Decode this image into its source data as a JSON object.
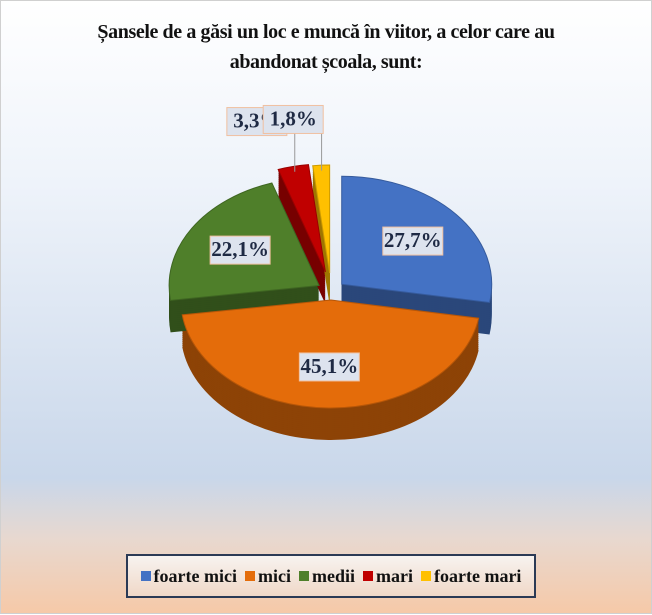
{
  "chart_data": {
    "type": "pie",
    "title": "Șansele de a găsi un loc e muncă în viitor, a celor care au abandonat școala, sunt:",
    "categories": [
      "foarte mici",
      "mici",
      "medii",
      "mari",
      "foarte mari"
    ],
    "values": [
      27.7,
      45.1,
      22.1,
      3.3,
      1.8
    ],
    "value_labels": [
      "27,7%",
      "45,1%",
      "22,1%",
      "3,3%",
      "1,8%"
    ],
    "colors": [
      "#4472c4",
      "#e46c0a",
      "#4f7f2a",
      "#c00000",
      "#ffc000"
    ],
    "legend": "bottom"
  }
}
